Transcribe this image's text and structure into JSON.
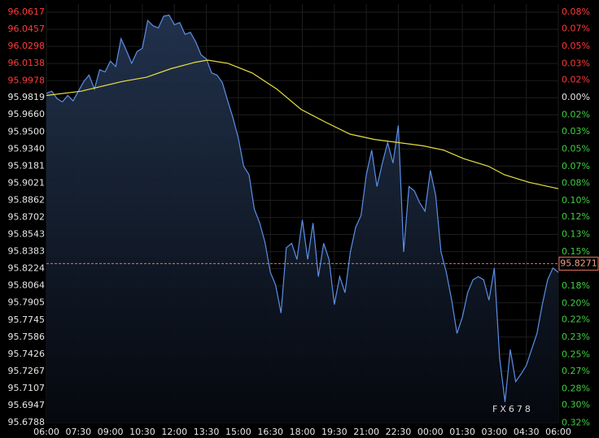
{
  "chart_data": {
    "type": "line",
    "xlim": [
      0,
      24
    ],
    "xticks": [
      {
        "value": 0,
        "label": "06:00"
      },
      {
        "value": 1.5,
        "label": "07:30"
      },
      {
        "value": 3,
        "label": "09:00"
      },
      {
        "value": 4.5,
        "label": "10:30"
      },
      {
        "value": 6,
        "label": "12:00"
      },
      {
        "value": 7.5,
        "label": "13:30"
      },
      {
        "value": 9,
        "label": "15:00"
      },
      {
        "value": 10.5,
        "label": "16:30"
      },
      {
        "value": 12,
        "label": "18:00"
      },
      {
        "value": 13.5,
        "label": "19:30"
      },
      {
        "value": 15,
        "label": "21:00"
      },
      {
        "value": 16.5,
        "label": "22:30"
      },
      {
        "value": 18,
        "label": "00:00"
      },
      {
        "value": 19.5,
        "label": "01:30"
      },
      {
        "value": 21,
        "label": "03:00"
      },
      {
        "value": 22.5,
        "label": "04:30"
      },
      {
        "value": 24,
        "label": "06:00"
      }
    ],
    "ylim": [
      95.6788,
      96.0617
    ],
    "yticks": [
      96.0617,
      96.0457,
      96.0298,
      96.0138,
      95.9978,
      95.9819,
      {
        "value": 95.966,
        "label": "95.9660"
      },
      {
        "value": 95.95,
        "label": "95.9500"
      },
      {
        "value": 95.934,
        "label": "95.9340"
      },
      95.9181,
      95.9021,
      95.8862,
      95.8702,
      95.8543,
      95.8383,
      95.8224,
      95.8064,
      95.7905,
      95.7745,
      95.7586,
      95.7426,
      95.7267,
      95.7107,
      95.6947,
      95.6788
    ],
    "y2lim": [
      -0.3158,
      0.0831
    ],
    "y2ticks": [
      {
        "value": 0.083,
        "label": "0.08%"
      },
      {
        "value": 0.067,
        "label": "0.07%"
      },
      {
        "value": 0.05,
        "label": "0.05%"
      },
      {
        "value": 0.033,
        "label": "0.03%"
      },
      {
        "value": 0.017,
        "label": "0.02%"
      },
      {
        "value": 0,
        "label": "0.00%"
      },
      {
        "value": -0.017,
        "label": "0.02%"
      },
      {
        "value": -0.033,
        "label": "0.03%"
      },
      {
        "value": -0.05,
        "label": "0.05%"
      },
      {
        "value": -0.067,
        "label": "0.07%"
      },
      {
        "value": -0.083,
        "label": "0.08%"
      },
      {
        "value": -0.1,
        "label": "0.10%"
      },
      {
        "value": -0.116,
        "label": "0.12%"
      },
      {
        "value": -0.133,
        "label": "0.13%"
      },
      {
        "value": -0.15,
        "label": "0.15%"
      },
      {
        "value": -0.183,
        "label": "0.18%"
      },
      {
        "value": -0.2,
        "label": "0.20%"
      },
      {
        "value": -0.216,
        "label": "0.22%"
      },
      {
        "value": -0.233,
        "label": "0.23%"
      },
      {
        "value": -0.25,
        "label": "0.25%"
      },
      {
        "value": -0.266,
        "label": "0.27%"
      },
      {
        "value": -0.283,
        "label": "0.28%"
      },
      {
        "value": -0.299,
        "label": "0.30%"
      },
      {
        "value": -0.316,
        "label": "0.32%"
      }
    ],
    "grid": true,
    "label_colors": {
      "up": "#ff3b3b",
      "flat": "#e6e6e6",
      "down": "#3ed13e"
    },
    "series": [
      {
        "color": "#5b8fe8",
        "area": true,
        "x": [
          0,
          0.25,
          0.5,
          0.75,
          1,
          1.25,
          1.5,
          1.75,
          2,
          2.25,
          2.5,
          2.75,
          3,
          3.25,
          3.5,
          3.75,
          4,
          4.25,
          4.5,
          4.75,
          5,
          5.25,
          5.5,
          5.75,
          6,
          6.25,
          6.5,
          6.75,
          7,
          7.25,
          7.5,
          7.75,
          8,
          8.25,
          8.5,
          8.75,
          9,
          9.25,
          9.5,
          9.75,
          10,
          10.25,
          10.5,
          10.75,
          11,
          11.25,
          11.5,
          11.75,
          12,
          12.25,
          12.5,
          12.75,
          13,
          13.25,
          13.5,
          13.75,
          14,
          14.25,
          14.5,
          14.75,
          15,
          15.25,
          15.5,
          15.75,
          16,
          16.25,
          16.5,
          16.75,
          17,
          17.25,
          17.5,
          17.75,
          18,
          18.25,
          18.5,
          18.75,
          19,
          19.25,
          19.5,
          19.75,
          20,
          20.25,
          20.5,
          20.75,
          21,
          21.25,
          21.5,
          21.75,
          22,
          22.25,
          22.5,
          22.75,
          23,
          23.25,
          23.5,
          23.75,
          24
        ],
        "values": [
          95.986,
          95.988,
          95.981,
          95.978,
          95.984,
          95.979,
          95.988,
          95.997,
          96.003,
          95.99,
          96.008,
          96.006,
          96.016,
          96.011,
          96.037,
          96.026,
          96.014,
          96.025,
          96.028,
          96.054,
          96.049,
          96.047,
          96.058,
          96.059,
          96.05,
          96.052,
          96.041,
          96.043,
          96.034,
          96.022,
          96.018,
          96.005,
          96.003,
          95.996,
          95.979,
          95.963,
          95.944,
          95.918,
          95.91,
          95.878,
          95.865,
          95.847,
          95.819,
          95.807,
          95.781,
          95.842,
          95.846,
          95.831,
          95.868,
          95.831,
          95.865,
          95.815,
          95.846,
          95.831,
          95.789,
          95.815,
          95.8,
          95.838,
          95.861,
          95.872,
          95.91,
          95.933,
          95.899,
          95.921,
          95.94,
          95.921,
          95.956,
          95.838,
          95.899,
          95.895,
          95.884,
          95.876,
          95.914,
          95.891,
          95.838,
          95.819,
          95.793,
          95.762,
          95.777,
          95.8,
          95.812,
          95.815,
          95.812,
          95.793,
          95.823,
          95.739,
          95.698,
          95.747,
          95.717,
          95.724,
          95.732,
          95.747,
          95.762,
          95.789,
          95.812,
          95.823,
          95.819
        ]
      },
      {
        "color": "#e8e040",
        "area": false,
        "x": [
          0,
          1.64,
          3.55,
          4.69,
          5.84,
          6.98,
          7.56,
          8.51,
          9.65,
          10.8,
          11.94,
          13.09,
          14.23,
          15.38,
          16.52,
          17.67,
          18.62,
          19.57,
          20.72,
          21.48,
          22.62,
          24
        ],
        "values": [
          95.984,
          95.988,
          95.997,
          96.001,
          96.009,
          96.015,
          96.017,
          96.014,
          96.005,
          95.99,
          95.971,
          95.959,
          95.948,
          95.943,
          95.94,
          95.937,
          95.933,
          95.925,
          95.918,
          95.91,
          95.903,
          95.897
        ]
      }
    ],
    "current_price": {
      "value": 95.8271,
      "label": "95.8271",
      "color": "#e8765a"
    },
    "watermark": "FX678"
  }
}
